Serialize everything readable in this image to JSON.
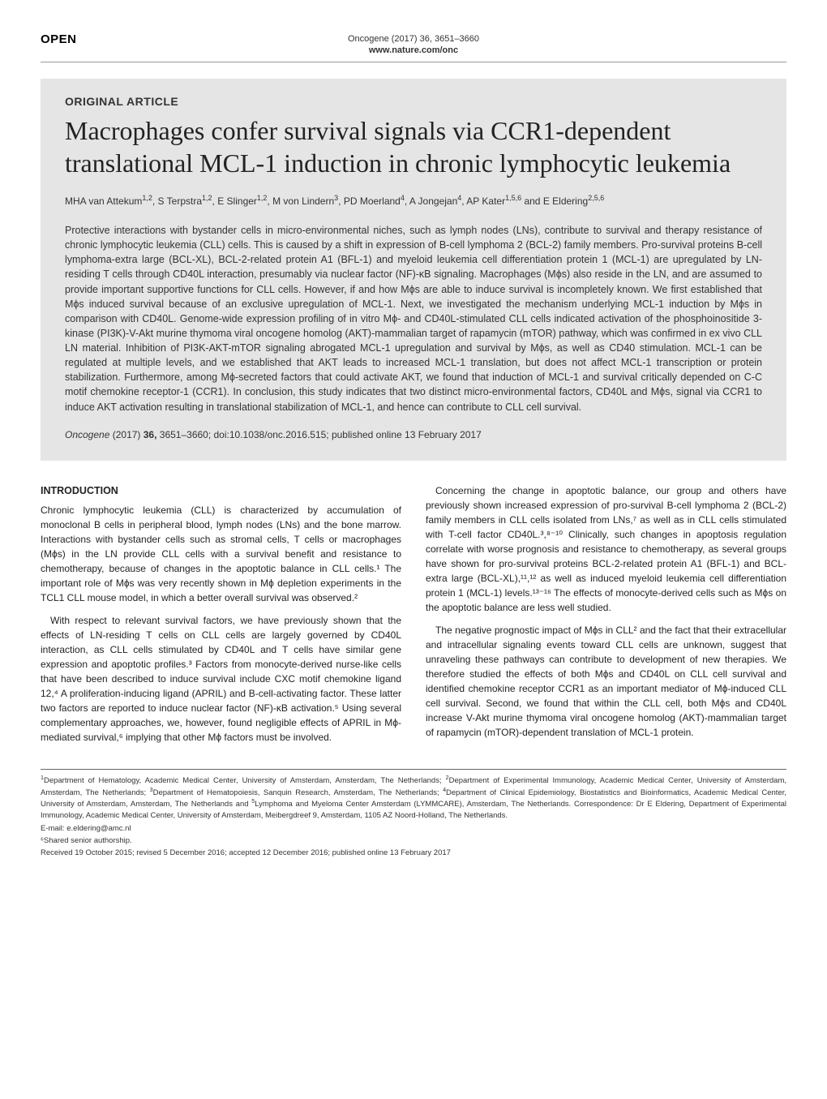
{
  "header": {
    "open_label": "OPEN",
    "journal_meta": "Oncogene (2017) 36, 3651–3660",
    "url": "www.nature.com/onc"
  },
  "article": {
    "type_label": "ORIGINAL ARTICLE",
    "title": "Macrophages confer survival signals via CCR1-dependent translational MCL-1 induction in chronic lymphocytic leukemia",
    "authors_html": "MHA van Attekum<sup>1,2</sup>, S Terpstra<sup>1,2</sup>, E Slinger<sup>1,2</sup>, M von Lindern<sup>3</sup>, PD Moerland<sup>4</sup>, A Jongejan<sup>4</sup>, AP Kater<sup>1,5,6</sup> and E Eldering<sup>2,5,6</sup>",
    "abstract": "Protective interactions with bystander cells in micro-environmental niches, such as lymph nodes (LNs), contribute to survival and therapy resistance of chronic lymphocytic leukemia (CLL) cells. This is caused by a shift in expression of B-cell lymphoma 2 (BCL-2) family members. Pro-survival proteins B-cell lymphoma-extra large (BCL-XL), BCL-2-related protein A1 (BFL-1) and myeloid leukemia cell differentiation protein 1 (MCL-1) are upregulated by LN-residing T cells through CD40L interaction, presumably via nuclear factor (NF)-κB signaling. Macrophages (Mϕs) also reside in the LN, and are assumed to provide important supportive functions for CLL cells. However, if and how Mϕs are able to induce survival is incompletely known. We first established that Mϕs induced survival because of an exclusive upregulation of MCL-1. Next, we investigated the mechanism underlying MCL-1 induction by Mϕs in comparison with CD40L. Genome-wide expression profiling of in vitro Mϕ- and CD40L-stimulated CLL cells indicated activation of the phosphoinositide 3-kinase (PI3K)-V-Akt murine thymoma viral oncogene homolog (AKT)-mammalian target of rapamycin (mTOR) pathway, which was confirmed in ex vivo CLL LN material. Inhibition of PI3K-AKT-mTOR signaling abrogated MCL-1 upregulation and survival by Mϕs, as well as CD40 stimulation. MCL-1 can be regulated at multiple levels, and we established that AKT leads to increased MCL-1 translation, but does not affect MCL-1 transcription or protein stabilization. Furthermore, among Mϕ-secreted factors that could activate AKT, we found that induction of MCL-1 and survival critically depended on C-C motif chemokine receptor-1 (CCR1). In conclusion, this study indicates that two distinct micro-environmental factors, CD40L and Mϕs, signal via CCR1 to induce AKT activation resulting in translational stabilization of MCL-1, and hence can contribute to CLL cell survival.",
    "citation_html": "<em>Oncogene</em> (2017) <strong>36,</strong> 3651–3660; doi:10.1038/onc.2016.515; published online 13 February 2017"
  },
  "body": {
    "intro_heading": "INTRODUCTION",
    "left_col": {
      "p1": "Chronic lymphocytic leukemia (CLL) is characterized by accumulation of monoclonal B cells in peripheral blood, lymph nodes (LNs) and the bone marrow. Interactions with bystander cells such as stromal cells, T cells or macrophages (Mϕs) in the LN provide CLL cells with a survival benefit and resistance to chemotherapy, because of changes in the apoptotic balance in CLL cells.¹ The important role of Mϕs was very recently shown in Mϕ depletion experiments in the TCL1 CLL mouse model, in which a better overall survival was observed.²",
      "p2": "With respect to relevant survival factors, we have previously shown that the effects of LN-residing T cells on CLL cells are largely governed by CD40L interaction, as CLL cells stimulated by CD40L and T cells have similar gene expression and apoptotic profiles.³ Factors from monocyte-derived nurse-like cells that have been described to induce survival include CXC motif chemokine ligand 12,⁴ A proliferation-inducing ligand (APRIL) and B-cell-activating factor. These latter two factors are reported to induce nuclear factor (NF)-κB activation.⁵ Using several complementary approaches, we, however, found negligible effects of APRIL in Mϕ-mediated survival,⁶ implying that other Mϕ factors must be involved."
    },
    "right_col": {
      "p1": "Concerning the change in apoptotic balance, our group and others have previously shown increased expression of pro-survival B-cell lymphoma 2 (BCL-2) family members in CLL cells isolated from LNs,⁷ as well as in CLL cells stimulated with T-cell factor CD40L.³,⁸⁻¹⁰ Clinically, such changes in apoptosis regulation correlate with worse prognosis and resistance to chemotherapy, as several groups have shown for pro-survival proteins BCL-2-related protein A1 (BFL-1) and BCL-extra large (BCL-XL),¹¹,¹² as well as induced myeloid leukemia cell differentiation protein 1 (MCL-1) levels.¹³⁻¹⁶ The effects of monocyte-derived cells such as Mϕs on the apoptotic balance are less well studied.",
      "p2": "The negative prognostic impact of Mϕs in CLL² and the fact that their extracellular and intracellular signaling events toward CLL cells are unknown, suggest that unraveling these pathways can contribute to development of new therapies. We therefore studied the effects of both Mϕs and CD40L on CLL cell survival and identified chemokine receptor CCR1 as an important mediator of Mϕ-induced CLL cell survival. Second, we found that within the CLL cell, both Mϕs and CD40L increase V-Akt murine thymoma viral oncogene homolog (AKT)-mammalian target of rapamycin (mTOR)-dependent translation of MCL-1 protein."
    }
  },
  "footer": {
    "affiliations_html": "<sup>1</sup>Department of Hematology, Academic Medical Center, University of Amsterdam, Amsterdam, The Netherlands; <sup>2</sup>Department of Experimental Immunology, Academic Medical Center, University of Amsterdam, Amsterdam, The Netherlands; <sup>3</sup>Department of Hematopoiesis, Sanquin Research, Amsterdam, The Netherlands; <sup>4</sup>Department of Clinical Epidemiology, Biostatistics and Bioinformatics, Academic Medical Center, University of Amsterdam, Amsterdam, The Netherlands and <sup>5</sup>Lymphoma and Myeloma Center Amsterdam (LYMMCARE), Amsterdam, The Netherlands. Correspondence: Dr E Eldering, Department of Experimental Immunology, Academic Medical Center, University of Amsterdam, Meibergdreef 9, Amsterdam, 1105 AZ Noord-Holland, The Netherlands.",
    "email": "E-mail: e.eldering@amc.nl",
    "shared": "⁶Shared senior authorship.",
    "received": "Received 19 October 2015; revised 5 December 2016; accepted 12 December 2016; published online 13 February 2017"
  }
}
